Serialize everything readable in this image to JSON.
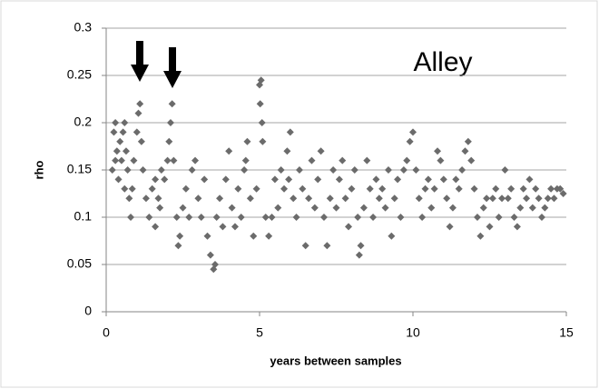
{
  "chart_data": {
    "type": "scatter",
    "annotation": "Alley",
    "xlabel": "years between samples",
    "ylabel": "rho",
    "color": "#6b6b6b",
    "grid": true,
    "xlim": [
      0,
      15
    ],
    "xticks": [
      0,
      5,
      10,
      15
    ],
    "ylim": [
      0,
      0.3
    ],
    "yticks": [
      0,
      0.05,
      0.1,
      0.15,
      0.2,
      0.25,
      0.3
    ],
    "x": [
      0.2,
      0.25,
      0.3,
      0.35,
      0.4,
      0.45,
      0.5,
      0.55,
      0.6,
      0.65,
      0.7,
      0.75,
      0.8,
      0.85,
      0.9,
      1.0,
      1.05,
      1.1,
      1.15,
      1.2,
      1.3,
      1.4,
      1.5,
      1.6,
      1.7,
      1.8,
      1.9,
      2.0,
      2.1,
      2.15,
      2.2,
      2.3,
      2.35,
      2.4,
      2.5,
      2.6,
      2.7,
      2.8,
      2.9,
      3.0,
      3.1,
      3.2,
      3.3,
      3.4,
      3.5,
      3.55,
      3.6,
      3.7,
      3.8,
      3.9,
      4.0,
      4.1,
      4.2,
      4.3,
      4.4,
      4.5,
      4.6,
      4.7,
      4.8,
      4.9,
      5.0,
      5.05,
      5.1,
      5.2,
      5.3,
      5.4,
      5.5,
      5.6,
      5.7,
      5.8,
      5.9,
      6.0,
      6.1,
      6.2,
      6.3,
      6.4,
      6.5,
      6.6,
      6.7,
      6.8,
      6.9,
      7.0,
      7.1,
      7.2,
      7.3,
      7.4,
      7.5,
      7.6,
      7.7,
      7.8,
      7.9,
      8.0,
      8.1,
      8.2,
      8.3,
      8.4,
      8.5,
      8.6,
      8.7,
      8.8,
      8.9,
      9.0,
      9.1,
      9.2,
      9.3,
      9.4,
      9.5,
      9.6,
      9.7,
      9.8,
      9.9,
      10.0,
      10.1,
      10.2,
      10.3,
      10.4,
      10.5,
      10.6,
      10.7,
      10.8,
      10.9,
      11.0,
      11.1,
      11.2,
      11.3,
      11.4,
      11.5,
      11.6,
      11.7,
      11.8,
      11.9,
      12.0,
      12.1,
      12.2,
      12.3,
      12.4,
      12.5,
      12.6,
      12.7,
      12.8,
      12.9,
      13.0,
      13.1,
      13.2,
      13.3,
      13.4,
      13.5,
      13.6,
      13.7,
      13.8,
      13.9,
      14.0,
      14.1,
      14.2,
      14.3,
      14.4,
      14.5,
      14.6,
      14.7,
      14.8,
      14.9,
      0.3,
      0.6,
      1.6,
      1.75,
      2.05,
      4.55,
      5.02,
      5.08,
      5.95,
      8.25
    ],
    "values": [
      0.15,
      0.19,
      0.2,
      0.17,
      0.14,
      0.18,
      0.16,
      0.19,
      0.13,
      0.17,
      0.15,
      0.12,
      0.1,
      0.13,
      0.16,
      0.19,
      0.21,
      0.22,
      0.18,
      0.15,
      0.12,
      0.1,
      0.13,
      0.09,
      0.12,
      0.15,
      0.14,
      0.16,
      0.2,
      0.22,
      0.16,
      0.1,
      0.07,
      0.08,
      0.11,
      0.13,
      0.1,
      0.15,
      0.16,
      0.12,
      0.1,
      0.14,
      0.08,
      0.06,
      0.045,
      0.05,
      0.1,
      0.12,
      0.09,
      0.14,
      0.17,
      0.11,
      0.09,
      0.13,
      0.1,
      0.15,
      0.18,
      0.12,
      0.08,
      0.13,
      0.24,
      0.245,
      0.18,
      0.1,
      0.08,
      0.1,
      0.14,
      0.11,
      0.15,
      0.13,
      0.17,
      0.19,
      0.12,
      0.1,
      0.15,
      0.13,
      0.07,
      0.12,
      0.16,
      0.11,
      0.14,
      0.17,
      0.1,
      0.07,
      0.12,
      0.15,
      0.11,
      0.14,
      0.16,
      0.12,
      0.09,
      0.13,
      0.15,
      0.1,
      0.07,
      0.11,
      0.16,
      0.13,
      0.1,
      0.14,
      0.12,
      0.13,
      0.11,
      0.15,
      0.08,
      0.12,
      0.14,
      0.1,
      0.15,
      0.16,
      0.18,
      0.19,
      0.15,
      0.12,
      0.1,
      0.13,
      0.14,
      0.11,
      0.13,
      0.17,
      0.16,
      0.14,
      0.12,
      0.09,
      0.11,
      0.14,
      0.13,
      0.15,
      0.17,
      0.18,
      0.16,
      0.13,
      0.1,
      0.08,
      0.11,
      0.12,
      0.09,
      0.12,
      0.13,
      0.1,
      0.12,
      0.15,
      0.12,
      0.13,
      0.1,
      0.09,
      0.11,
      0.13,
      0.12,
      0.14,
      0.11,
      0.13,
      0.12,
      0.1,
      0.11,
      0.12,
      0.13,
      0.12,
      0.13,
      0.13,
      0.125,
      0.16,
      0.2,
      0.14,
      0.11,
      0.18,
      0.16,
      0.22,
      0.2,
      0.14,
      0.06
    ]
  }
}
